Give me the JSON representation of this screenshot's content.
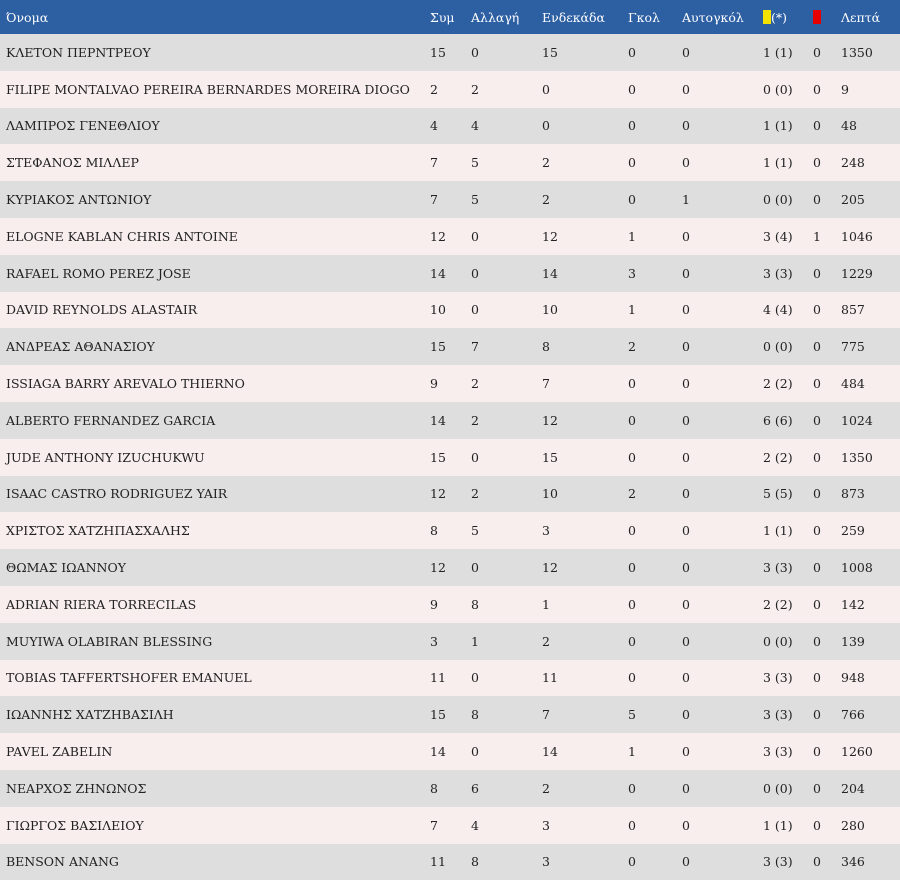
{
  "headers": {
    "name": "Όνομα",
    "apps": "Συμ",
    "subs": "Αλλαγή",
    "starts": "Ενδεκάδα",
    "goals": "Γκολ",
    "own_goals": "Αυτογκόλ",
    "yellow_suffix": "(*)",
    "minutes": "Λεπτά"
  },
  "colors": {
    "header_bg": "#2d5fa3",
    "yellow_card": "#f4e200",
    "red_card": "#e60000"
  },
  "icons": {
    "yellow": "yellow-card-icon",
    "red": "red-card-icon"
  },
  "rows": [
    {
      "name": "ΚΛΕΤΟΝ ΠΕΡΝΤΡΕΟΥ",
      "apps": "15",
      "subs": "0",
      "starts": "15",
      "goals": "0",
      "own": "0",
      "yellow": "1 (1)",
      "red": "0",
      "minutes": "1350"
    },
    {
      "name": "FILIPE MONTALVAO PEREIRA BERNARDES MOREIRA DIOGO",
      "apps": "2",
      "subs": "2",
      "starts": "0",
      "goals": "0",
      "own": "0",
      "yellow": "0 (0)",
      "red": "0",
      "minutes": "9"
    },
    {
      "name": "ΛΑΜΠΡΟΣ ΓΕΝΕΘΛΙΟΥ",
      "apps": "4",
      "subs": "4",
      "starts": "0",
      "goals": "0",
      "own": "0",
      "yellow": "1 (1)",
      "red": "0",
      "minutes": "48"
    },
    {
      "name": "ΣΤΕΦΑΝΟΣ ΜΙΛΛΕΡ",
      "apps": "7",
      "subs": "5",
      "starts": "2",
      "goals": "0",
      "own": "0",
      "yellow": "1 (1)",
      "red": "0",
      "minutes": "248"
    },
    {
      "name": "ΚΥΡΙΑΚΟΣ ΑΝΤΩΝΙΟΥ",
      "apps": "7",
      "subs": "5",
      "starts": "2",
      "goals": "0",
      "own": "1",
      "yellow": "0 (0)",
      "red": "0",
      "minutes": "205"
    },
    {
      "name": "ELOGNE KABLAN CHRIS ANTOINE",
      "apps": "12",
      "subs": "0",
      "starts": "12",
      "goals": "1",
      "own": "0",
      "yellow": "3 (4)",
      "red": "1",
      "minutes": "1046"
    },
    {
      "name": "RAFAEL ROMO PEREZ JOSE",
      "apps": "14",
      "subs": "0",
      "starts": "14",
      "goals": "3",
      "own": "0",
      "yellow": "3 (3)",
      "red": "0",
      "minutes": "1229"
    },
    {
      "name": "DAVID REYNOLDS ALASTAIR",
      "apps": "10",
      "subs": "0",
      "starts": "10",
      "goals": "1",
      "own": "0",
      "yellow": "4 (4)",
      "red": "0",
      "minutes": "857"
    },
    {
      "name": "ΑΝΔΡΕΑΣ ΑΘΑΝΑΣΙΟΥ",
      "apps": "15",
      "subs": "7",
      "starts": "8",
      "goals": "2",
      "own": "0",
      "yellow": "0 (0)",
      "red": "0",
      "minutes": "775"
    },
    {
      "name": "ISSIAGA BARRY AREVALO THIERNO",
      "apps": "9",
      "subs": "2",
      "starts": "7",
      "goals": "0",
      "own": "0",
      "yellow": "2 (2)",
      "red": "0",
      "minutes": "484"
    },
    {
      "name": "ALBERTO FERNANDEZ GARCIA",
      "apps": "14",
      "subs": "2",
      "starts": "12",
      "goals": "0",
      "own": "0",
      "yellow": "6 (6)",
      "red": "0",
      "minutes": "1024"
    },
    {
      "name": "JUDE ANTHONY IZUCHUKWU",
      "apps": "15",
      "subs": "0",
      "starts": "15",
      "goals": "0",
      "own": "0",
      "yellow": "2 (2)",
      "red": "0",
      "minutes": "1350"
    },
    {
      "name": "ISAAC CASTRO RODRIGUEZ YAIR",
      "apps": "12",
      "subs": "2",
      "starts": "10",
      "goals": "2",
      "own": "0",
      "yellow": "5 (5)",
      "red": "0",
      "minutes": "873"
    },
    {
      "name": "ΧΡΙΣΤΟΣ ΧΑΤΖΗΠΑΣΧΑΛΗΣ",
      "apps": "8",
      "subs": "5",
      "starts": "3",
      "goals": "0",
      "own": "0",
      "yellow": "1 (1)",
      "red": "0",
      "minutes": "259"
    },
    {
      "name": "ΘΩΜΑΣ ΙΩΑΝΝΟΥ",
      "apps": "12",
      "subs": "0",
      "starts": "12",
      "goals": "0",
      "own": "0",
      "yellow": "3 (3)",
      "red": "0",
      "minutes": "1008"
    },
    {
      "name": "ADRIAN RIERA TORRECILAS",
      "apps": "9",
      "subs": "8",
      "starts": "1",
      "goals": "0",
      "own": "0",
      "yellow": "2 (2)",
      "red": "0",
      "minutes": "142"
    },
    {
      "name": "MUYIWA OLABIRAN BLESSING",
      "apps": "3",
      "subs": "1",
      "starts": "2",
      "goals": "0",
      "own": "0",
      "yellow": "0 (0)",
      "red": "0",
      "minutes": "139"
    },
    {
      "name": "TOBIAS TAFFERTSHOFER EMANUEL",
      "apps": "11",
      "subs": "0",
      "starts": "11",
      "goals": "0",
      "own": "0",
      "yellow": "3 (3)",
      "red": "0",
      "minutes": "948"
    },
    {
      "name": "ΙΩΑΝΝΗΣ ΧΑΤΖΗΒΑΣΙΛΗ",
      "apps": "15",
      "subs": "8",
      "starts": "7",
      "goals": "5",
      "own": "0",
      "yellow": "3 (3)",
      "red": "0",
      "minutes": "766"
    },
    {
      "name": "PAVEL ZABELIN",
      "apps": "14",
      "subs": "0",
      "starts": "14",
      "goals": "1",
      "own": "0",
      "yellow": "3 (3)",
      "red": "0",
      "minutes": "1260"
    },
    {
      "name": "ΝΕΑΡΧΟΣ ΖΗΝΩΝΟΣ",
      "apps": "8",
      "subs": "6",
      "starts": "2",
      "goals": "0",
      "own": "0",
      "yellow": "0 (0)",
      "red": "0",
      "minutes": "204"
    },
    {
      "name": "ΓΙΩΡΓΟΣ ΒΑΣΙΛΕΙΟΥ",
      "apps": "7",
      "subs": "4",
      "starts": "3",
      "goals": "0",
      "own": "0",
      "yellow": "1 (1)",
      "red": "0",
      "minutes": "280"
    },
    {
      "name": "BENSON ANANG",
      "apps": "11",
      "subs": "8",
      "starts": "3",
      "goals": "0",
      "own": "0",
      "yellow": "3 (3)",
      "red": "0",
      "minutes": "346"
    }
  ]
}
